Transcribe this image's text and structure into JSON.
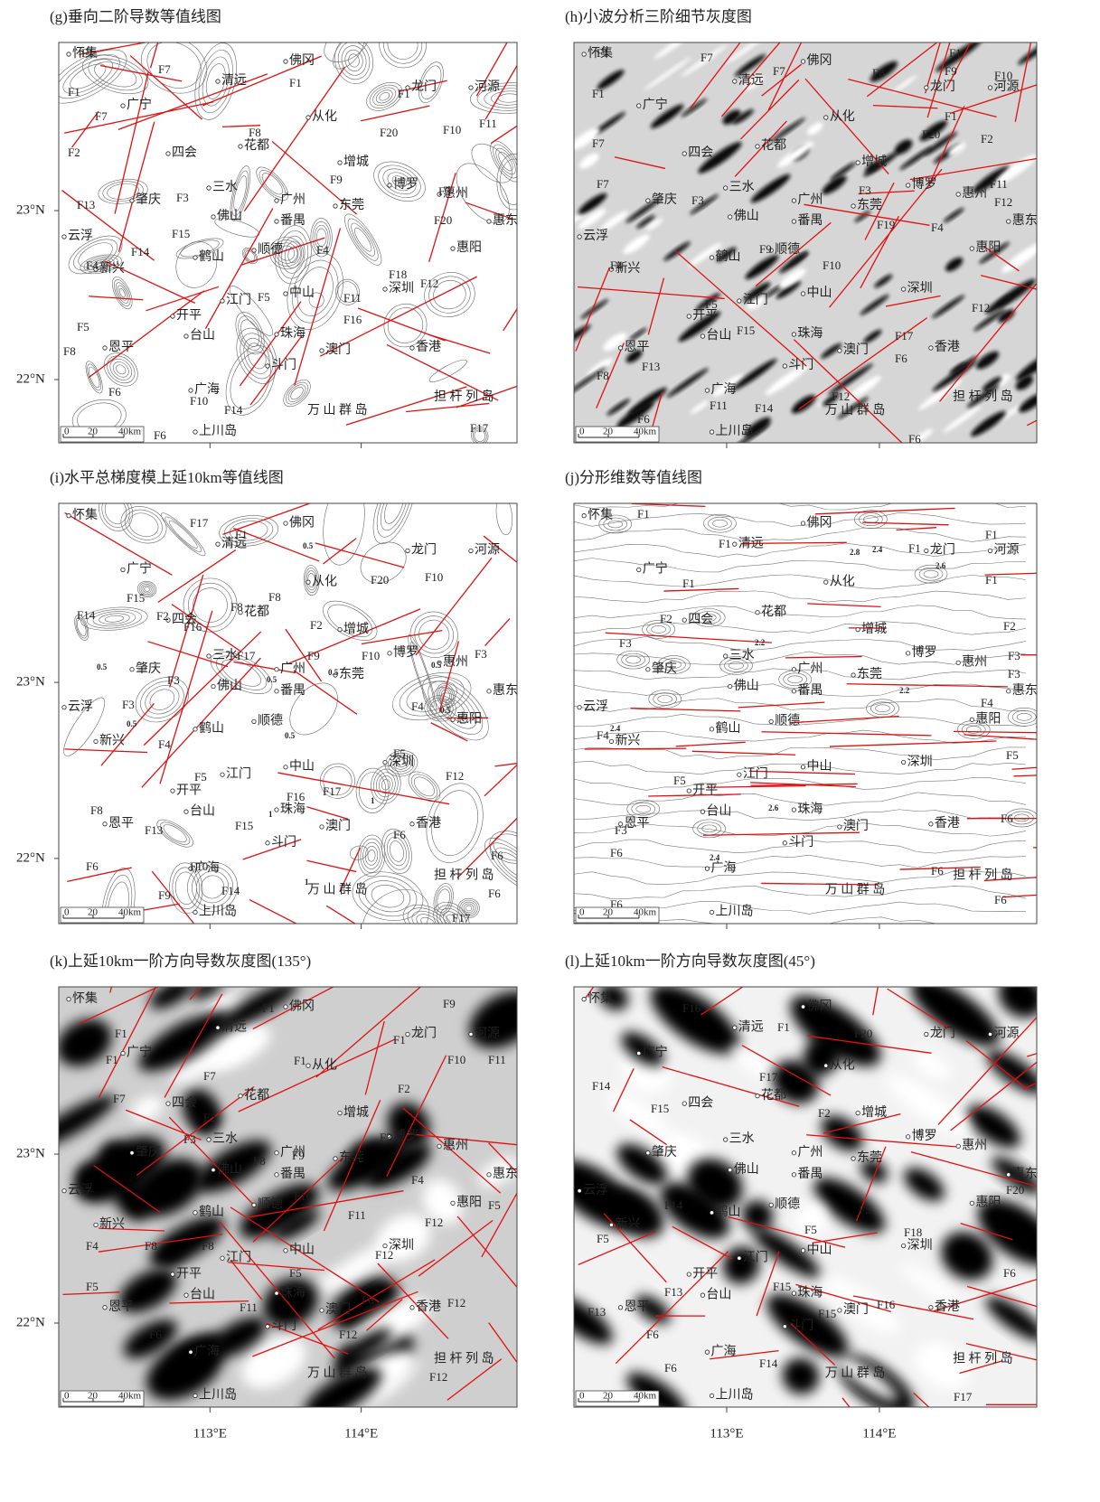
{
  "cities": [
    "怀集",
    "佛冈",
    "清远",
    "龙门",
    "河源",
    "从化",
    "广宁",
    "四会",
    "花都",
    "增城",
    "三水",
    "广州",
    "博罗",
    "惠州",
    "肇庆",
    "佛山",
    "番禺",
    "东莞",
    "惠东",
    "云浮",
    "鹤山",
    "顺德",
    "惠阳",
    "新兴",
    "深圳",
    "江门",
    "中山",
    "开平",
    "台山",
    "珠海",
    "恩平",
    "澳门",
    "香港",
    "斗门",
    "广海",
    "上川岛",
    "万 山 群 岛",
    "担 杆 列 岛"
  ],
  "lat_labels": [
    "23°N",
    "22°N"
  ],
  "lon_labels": [
    "113°E",
    "114°E"
  ],
  "scale_labels": [
    "0",
    "20",
    "40km"
  ],
  "panels": [
    {
      "title": "(g)垂向二阶导数等值线图",
      "faults": [
        "F1",
        "F7",
        "F1",
        "F7",
        "F2",
        "F13",
        "F3",
        "F14",
        "F4",
        "F5",
        "F8",
        "F6",
        "F10",
        "F6",
        "F17",
        "F12",
        "F18",
        "F11",
        "F16",
        "F20",
        "F10",
        "F11",
        "F3",
        "F20",
        "F15",
        "F5",
        "F14",
        "F4",
        "F9",
        "F1",
        "F1",
        "F8"
      ],
      "contour_labels": []
    },
    {
      "title": "(h)小波分析三阶细节灰度图",
      "faults": [
        "F1",
        "F7",
        "F1",
        "F9",
        "F10",
        "F8",
        "F7",
        "F1",
        "F7",
        "F7",
        "F3",
        "F3",
        "F1",
        "F20",
        "F2",
        "F11",
        "F12",
        "F4",
        "F19",
        "F10",
        "F9",
        "F4",
        "F12",
        "F17",
        "F6",
        "F12",
        "F14",
        "F11",
        "F6",
        "F13",
        "F8",
        "F5",
        "F15",
        "F6"
      ],
      "contour_labels": []
    },
    {
      "title": "(i)水平总梯度模上延10km等值线图",
      "faults": [
        "F17",
        "F1",
        "F20",
        "F10",
        "F15",
        "F14",
        "F2",
        "F16",
        "F8",
        "F8",
        "F2",
        "F17",
        "F9",
        "F3",
        "F3",
        "F10",
        "F3",
        "F4",
        "F4",
        "F5",
        "F16",
        "F17",
        "F12",
        "F5",
        "F8",
        "F13",
        "F15",
        "F6",
        "F6",
        "F10",
        "F14",
        "F9",
        "F6",
        "F6",
        "F17"
      ],
      "contour_labels": [
        "0.5",
        "0.5",
        "0.5",
        "0.5",
        "0.5",
        "0.5",
        "0.5",
        "0.5",
        "1",
        "1",
        "1"
      ]
    },
    {
      "title": "(j)分形维数等值线图",
      "faults": [
        "F1",
        "F1",
        "F1",
        "F1",
        "F1",
        "F1",
        "F2",
        "F2",
        "F3",
        "F3",
        "F3",
        "F4",
        "F4",
        "F5",
        "F5",
        "F3",
        "F6",
        "F6",
        "F6",
        "F6",
        "F6"
      ],
      "contour_labels": [
        "2.4",
        "2.6",
        "2.2",
        "2.8",
        "2.2",
        "2.4",
        "2.6",
        "2.4"
      ]
    },
    {
      "title": "(k)上延10km一阶方向导数灰度图(135°)",
      "faults": [
        "F1",
        "F9",
        "F1",
        "F1",
        "F1",
        "F10",
        "F11",
        "F7",
        "F1",
        "F2",
        "F7",
        "F2",
        "F3",
        "F3",
        "F8",
        "F9",
        "F10",
        "F4",
        "F11",
        "F12",
        "F12",
        "F5",
        "F4",
        "F8",
        "F8",
        "F5",
        "F5",
        "F11",
        "F6",
        "F12",
        "F6",
        "F12",
        "F12"
      ],
      "contour_labels": []
    },
    {
      "title": "(l)上延10km一阶方向导数灰度图(45°)",
      "faults": [
        "F16",
        "F1",
        "F20",
        "F14",
        "F17",
        "F15",
        "F2",
        "F14",
        "F5",
        "F18",
        "F5",
        "F5",
        "F13",
        "F15",
        "F15",
        "F13",
        "F16",
        "F6",
        "F6",
        "F14",
        "F6",
        "F17",
        "F20"
      ],
      "contour_labels": []
    }
  ]
}
